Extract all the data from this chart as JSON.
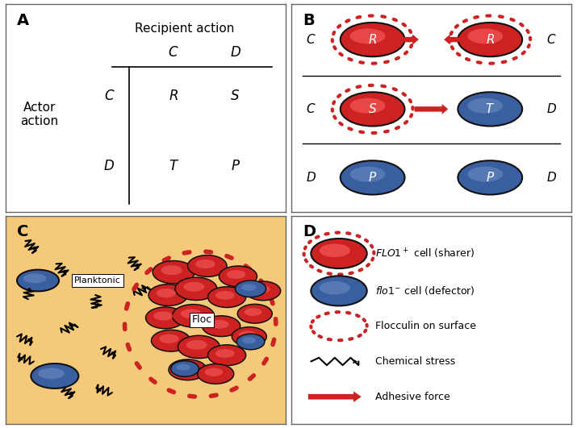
{
  "panel_A": {
    "label": "A",
    "title": "Recipient action",
    "row_label": "Actor\naction",
    "col_headers": [
      "C",
      "D"
    ],
    "row_headers": [
      "C",
      "D"
    ],
    "cells": [
      [
        "R",
        "S"
      ],
      [
        "T",
        "P"
      ]
    ]
  },
  "panel_B": {
    "label": "B"
  },
  "panel_C": {
    "label": "C",
    "bg_color": "#F5C97A",
    "planktonic_label": "Planktonic",
    "floc_label": "Floc"
  },
  "panel_D": {
    "label": "D",
    "legend_texts": [
      "FLO1+ cell (sharer)",
      "flo1− cell (defector)",
      "Flocculin on surface",
      "Chemical stress",
      "Adhesive force"
    ]
  },
  "red_cell_color": "#CC2222",
  "red_cell_highlight": "#FF6666",
  "blue_cell_color": "#3A5FA0",
  "blue_cell_highlight": "#7799CC",
  "dashed_color": "#CC2222",
  "arrow_color": "#CC2222",
  "border_color": "#111111",
  "bg_tan": "#F5C97A"
}
